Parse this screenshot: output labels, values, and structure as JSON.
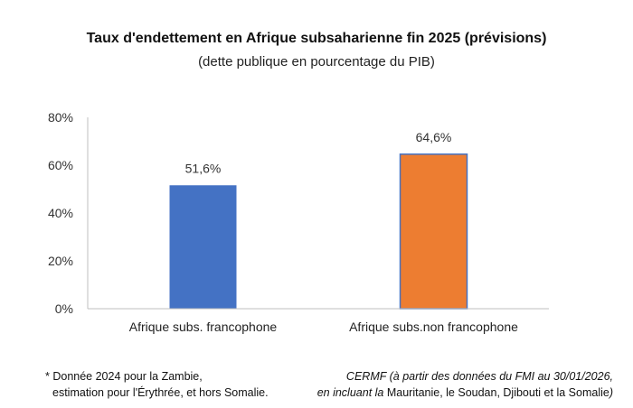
{
  "chart_data": {
    "type": "bar",
    "title": "Taux d'endettement en Afrique subsaharienne fin 2025 (prévisions)",
    "subtitle": "(dette publique en pourcentage du PIB)",
    "categories": [
      "Afrique subs. francophone",
      "Afrique subs.non  francophone"
    ],
    "values": [
      51.6,
      64.6
    ],
    "data_labels": [
      "51,6%",
      "64,6%"
    ],
    "colors": [
      "#4472c4",
      "#ed7d31"
    ],
    "ylim": [
      0,
      80
    ],
    "yticks": [
      0,
      20,
      40,
      60,
      80
    ],
    "ytick_labels": [
      "0%",
      "20%",
      "40%",
      "60%",
      "80%"
    ],
    "grid": false,
    "xlabel": "",
    "ylabel": ""
  },
  "notes": {
    "left_line1": "* Donnée 2024 pour la Zambie,",
    "left_line2": "estimation pour l'Érythrée, et hors Somalie.",
    "right_line1": "CERMF (à partir des données du FMI au 30/01/2026,",
    "right_line2_italic": "en incluant la",
    "right_line2_rest": " Mauritanie,  le Soudan,  Djibouti et la Somalie",
    "right_line2_end": ")"
  }
}
